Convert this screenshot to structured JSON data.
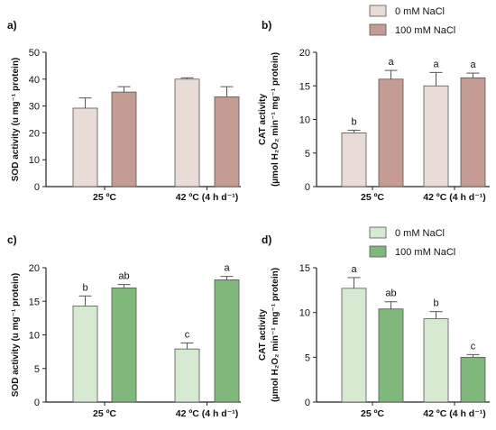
{
  "colors": {
    "brown_light": "#e9dcd6",
    "brown_dark": "#c49c93",
    "green_light": "#d6ead2",
    "green_dark": "#7fb87a",
    "edge": "#555555",
    "axis": "#222222"
  },
  "chart_data": [
    {
      "panel_label": "a)",
      "type": "bar",
      "ylabel": "SOD activity (u mg⁻¹ protein)",
      "ylim": [
        0,
        50
      ],
      "yticks": [
        "0",
        "10",
        "20",
        "30",
        "40",
        "50"
      ],
      "ytick_values": [
        0,
        10,
        20,
        30,
        40,
        50
      ],
      "categories": [
        "25 ºC",
        "42 ºC (4 h d⁻¹)"
      ],
      "series": [
        {
          "values": [
            29.2,
            40.0
          ],
          "errors": [
            3.8,
            0.5
          ],
          "color": "#e9dcd6"
        },
        {
          "values": [
            35.2,
            33.4
          ],
          "errors": [
            2.0,
            3.8
          ],
          "color": "#c49c93"
        }
      ],
      "letters": null
    },
    {
      "panel_label": "b)",
      "type": "bar",
      "ylabel_line1": "CAT activity",
      "ylabel_line2": "(µmol H₂O₂ min⁻¹ mg⁻¹ protein)",
      "ylim": [
        0,
        20
      ],
      "yticks": [
        "0",
        "5",
        "10",
        "15",
        "20"
      ],
      "ytick_values": [
        0,
        5,
        10,
        15,
        20
      ],
      "categories": [
        "25 ºC",
        "42 ºC (4 h d⁻¹)"
      ],
      "legend": [
        "0 mM NaCl",
        "100 mM NaCl"
      ],
      "series": [
        {
          "name": "0 mM NaCl",
          "values": [
            8.0,
            15.0
          ],
          "errors": [
            0.4,
            2.0
          ],
          "color": "#e9dcd6",
          "letters": [
            "b",
            "a"
          ]
        },
        {
          "name": "100 mM NaCl",
          "values": [
            16.0,
            16.2
          ],
          "errors": [
            1.3,
            0.7
          ],
          "color": "#c49c93",
          "letters": [
            "a",
            "a"
          ]
        }
      ]
    },
    {
      "panel_label": "c)",
      "type": "bar",
      "ylabel": "SOD activity (u mg⁻¹ protein)",
      "ylim": [
        0,
        20
      ],
      "yticks": [
        "0",
        "5",
        "10",
        "15",
        "20"
      ],
      "ytick_values": [
        0,
        5,
        10,
        15,
        20
      ],
      "categories": [
        "25 ºC",
        "42 ºC (4 h d⁻¹)"
      ],
      "series": [
        {
          "values": [
            14.3,
            7.9
          ],
          "errors": [
            1.5,
            0.9
          ],
          "color": "#d6ead2",
          "letters": [
            "b",
            "c"
          ]
        },
        {
          "values": [
            17.0,
            18.2
          ],
          "errors": [
            0.5,
            0.5
          ],
          "color": "#7fb87a",
          "letters": [
            "ab",
            "a"
          ]
        }
      ]
    },
    {
      "panel_label": "d)",
      "type": "bar",
      "ylabel_line1": "CAT activity",
      "ylabel_line2": "(µmol H₂O₂ min⁻¹ mg⁻¹ protein)",
      "ylim": [
        0,
        15
      ],
      "yticks": [
        "0",
        "5",
        "10",
        "15"
      ],
      "ytick_values": [
        0,
        5,
        10,
        15
      ],
      "categories": [
        "25 ºC",
        "42 ºC (4 h d⁻¹)"
      ],
      "legend": [
        "0 mM NaCl",
        "100 mM NaCl"
      ],
      "series": [
        {
          "name": "0 mM NaCl",
          "values": [
            12.7,
            9.3
          ],
          "errors": [
            1.2,
            0.8
          ],
          "color": "#d6ead2",
          "letters": [
            "a",
            "b"
          ]
        },
        {
          "name": "100 mM NaCl",
          "values": [
            10.4,
            5.0
          ],
          "errors": [
            0.8,
            0.3
          ],
          "color": "#7fb87a",
          "letters": [
            "ab",
            "c"
          ]
        }
      ]
    }
  ]
}
